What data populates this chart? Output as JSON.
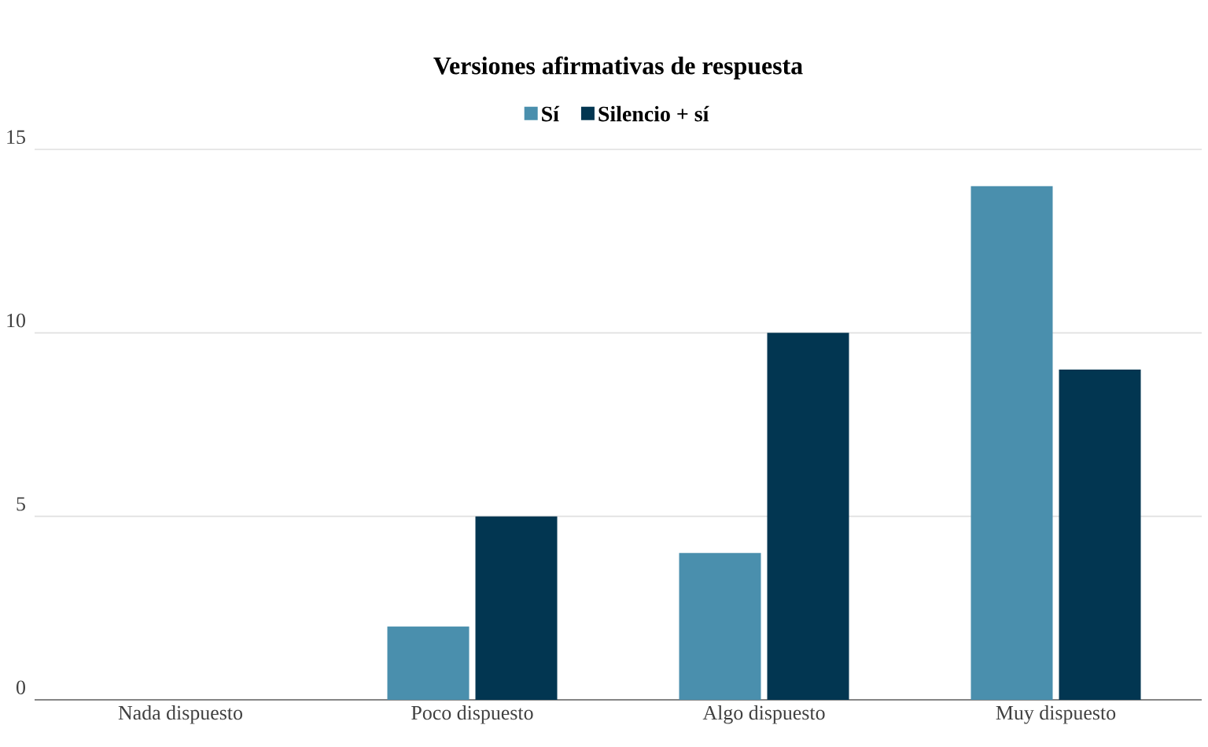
{
  "chart_data": {
    "type": "bar",
    "title": "Versiones afirmativas de respuesta",
    "categories": [
      "Nada dispuesto",
      "Poco dispuesto",
      "Algo dispuesto",
      "Muy dispuesto"
    ],
    "series": [
      {
        "name": "Sí",
        "color": "#4a8fad",
        "values": [
          0,
          2,
          4,
          14
        ]
      },
      {
        "name": "Silencio + sí",
        "color": "#023651",
        "values": [
          0,
          5,
          10,
          9
        ]
      }
    ],
    "ylim": [
      0,
      15
    ],
    "yticks": [
      0,
      5,
      10,
      15
    ],
    "grid": "y",
    "legend": "top"
  }
}
